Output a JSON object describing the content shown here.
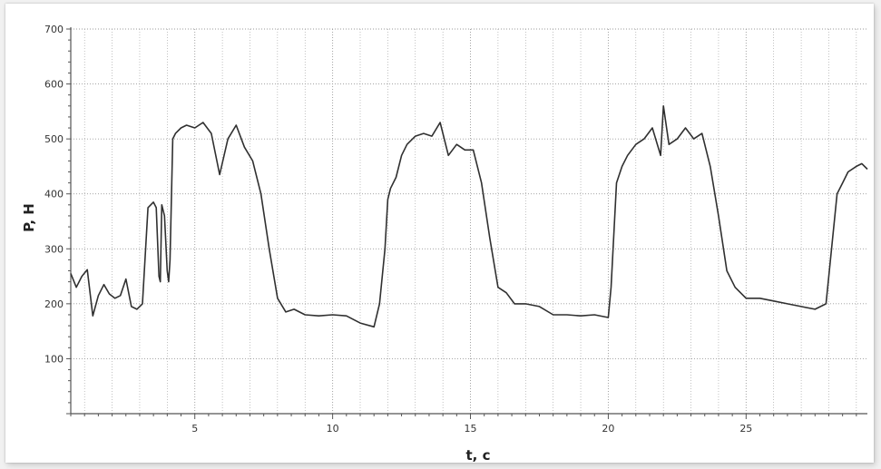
{
  "chart_data": {
    "type": "line",
    "title": "",
    "xlabel": "t, c",
    "ylabel": "P, H",
    "xlim": [
      0.5,
      29.4
    ],
    "ylim": [
      0,
      700
    ],
    "x_ticks": [
      5,
      10,
      15,
      20,
      25
    ],
    "y_ticks": [
      100,
      200,
      300,
      400,
      500,
      600,
      700
    ],
    "grid": true,
    "colors": {
      "line": "#303030",
      "grid": "#9a9a9a",
      "axis": "#555555"
    },
    "series": [
      {
        "x": [
          0.5,
          0.7,
          0.9,
          1.1,
          1.3,
          1.5,
          1.7,
          1.9,
          2.1,
          2.3,
          2.5,
          2.7,
          2.9,
          3.1,
          3.3,
          3.5,
          3.6,
          3.7,
          3.75,
          3.8,
          3.9,
          4.0,
          4.05,
          4.1,
          4.2,
          4.3,
          4.5,
          4.7,
          5.0,
          5.3,
          5.6,
          5.9,
          6.2,
          6.5,
          6.8,
          7.1,
          7.4,
          7.7,
          8.0,
          8.3,
          8.6,
          9.0,
          9.5,
          10.0,
          10.5,
          11.0,
          11.5,
          11.7,
          11.9,
          12.0,
          12.1,
          12.3,
          12.5,
          12.7,
          13.0,
          13.3,
          13.6,
          13.9,
          14.2,
          14.5,
          14.8,
          15.1,
          15.4,
          15.7,
          16.0,
          16.3,
          16.6,
          17.0,
          17.5,
          18.0,
          18.5,
          19.0,
          19.5,
          20.0,
          20.1,
          20.3,
          20.5,
          20.7,
          21.0,
          21.3,
          21.6,
          21.9,
          22.0,
          22.2,
          22.5,
          22.8,
          23.1,
          23.4,
          23.7,
          24.0,
          24.3,
          24.6,
          25.0,
          25.5,
          26.0,
          26.5,
          27.0,
          27.5,
          27.9,
          28.1,
          28.3,
          28.5,
          28.7,
          29.0,
          29.2,
          29.4
        ],
        "y": [
          255,
          230,
          250,
          262,
          178,
          215,
          235,
          218,
          210,
          215,
          245,
          195,
          190,
          200,
          375,
          385,
          375,
          250,
          240,
          380,
          360,
          260,
          240,
          280,
          500,
          510,
          520,
          525,
          520,
          530,
          510,
          435,
          500,
          525,
          485,
          460,
          400,
          300,
          210,
          185,
          190,
          180,
          178,
          180,
          178,
          165,
          158,
          200,
          300,
          390,
          410,
          430,
          470,
          490,
          505,
          510,
          505,
          530,
          470,
          490,
          480,
          480,
          420,
          320,
          230,
          220,
          200,
          200,
          195,
          180,
          180,
          178,
          180,
          175,
          230,
          420,
          450,
          470,
          490,
          500,
          520,
          470,
          560,
          490,
          500,
          520,
          500,
          510,
          450,
          360,
          260,
          230,
          210,
          210,
          205,
          200,
          195,
          190,
          200,
          300,
          400,
          420,
          440,
          450,
          455,
          445
        ]
      }
    ]
  }
}
